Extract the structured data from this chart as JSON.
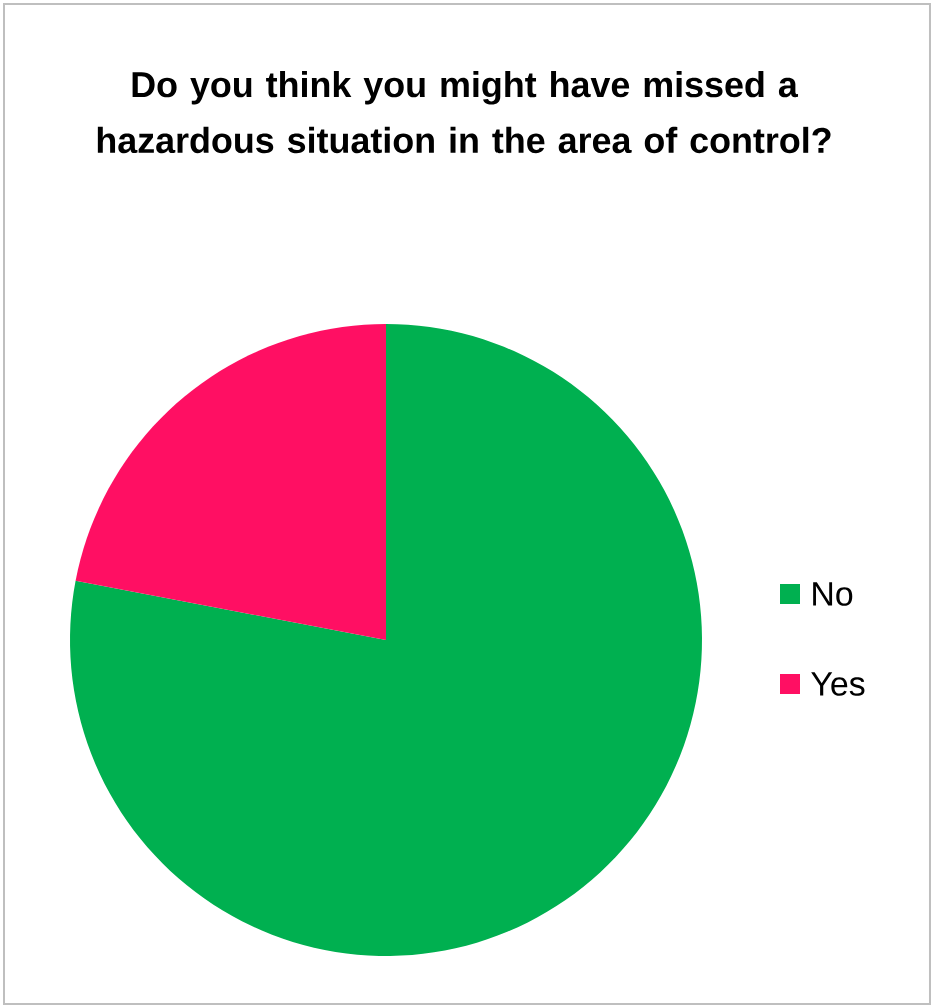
{
  "chart_data": {
    "type": "pie",
    "title": "Do you think you might have missed a hazardous situation in the area of control?",
    "categories": [
      "No",
      "Yes"
    ],
    "values": [
      78,
      22
    ],
    "colors": [
      "#00b050",
      "#ff0f63"
    ],
    "legend": "right"
  }
}
